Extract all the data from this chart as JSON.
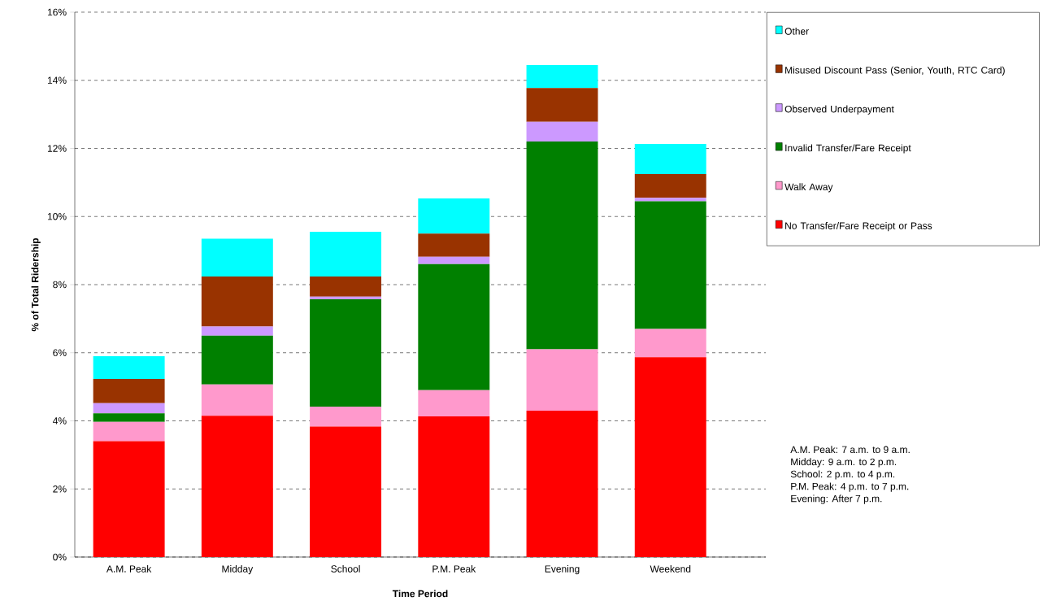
{
  "chart_data": {
    "type": "bar",
    "stacked": true,
    "xlabel": "Time Period",
    "ylabel": "% of Total Ridership",
    "categories": [
      "A.M. Peak",
      "Midday",
      "School",
      "P.M. Peak",
      "Evening",
      "Weekend"
    ],
    "series": [
      {
        "name": "No Transfer/Fare Receipt or Pass",
        "color": "#ff0000",
        "values": [
          3.4,
          4.15,
          3.83,
          4.13,
          4.3,
          5.87
        ]
      },
      {
        "name": "Walk Away",
        "color": "#ff99cc",
        "values": [
          0.57,
          0.92,
          0.59,
          0.77,
          1.8,
          0.83
        ]
      },
      {
        "name": "Invalid Transfer/Fare Receipt",
        "color": "#008000",
        "values": [
          0.25,
          1.43,
          3.15,
          3.7,
          6.1,
          3.75
        ]
      },
      {
        "name": "Observed Underpayment",
        "color": "#cc99ff",
        "values": [
          0.3,
          0.27,
          0.08,
          0.22,
          0.58,
          0.1
        ]
      },
      {
        "name": "Misused Discount Pass (Senior, Youth, RTC Card)",
        "color": "#993300",
        "values": [
          0.71,
          1.47,
          0.59,
          0.68,
          0.99,
          0.7
        ]
      },
      {
        "name": "Other",
        "color": "#00ffff",
        "values": [
          0.67,
          1.11,
          1.31,
          1.03,
          0.68,
          0.88
        ]
      }
    ],
    "ylim": [
      0,
      16
    ],
    "yticks": [
      {
        "value": 0,
        "label": "0%"
      },
      {
        "value": 2,
        "label": "2%"
      },
      {
        "value": 4,
        "label": "4%"
      },
      {
        "value": 6,
        "label": "6%"
      },
      {
        "value": 8,
        "label": "8%"
      },
      {
        "value": 10,
        "label": "10%"
      },
      {
        "value": 12,
        "label": "12%"
      },
      {
        "value": 14,
        "label": "14%"
      },
      {
        "value": 16,
        "label": "16%"
      }
    ],
    "grid": "y",
    "legend": "right",
    "annotations": [
      "A.M. Peak: 7 a.m. to 9 a.m.",
      "Midday: 9 a.m. to 2 p.m.",
      "School: 2 p.m. to 4 p.m.",
      "P.M. Peak: 4 p.m. to 7 p.m.",
      "Evening: After 7 p.m."
    ]
  }
}
